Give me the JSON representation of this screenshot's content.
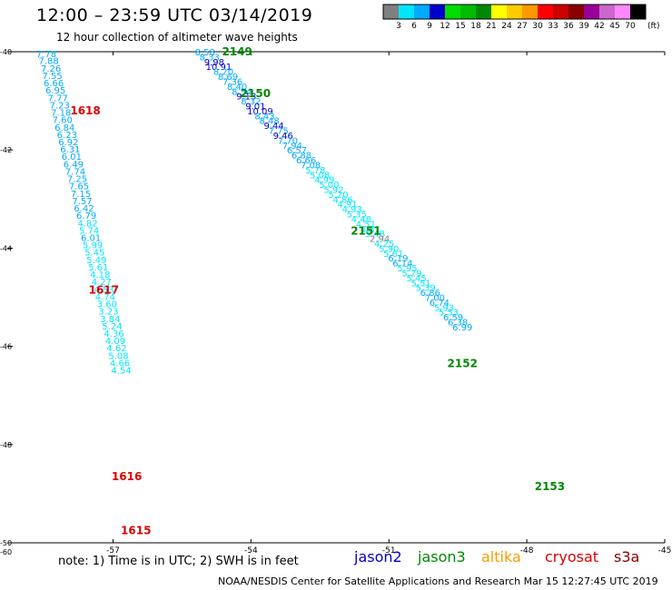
{
  "title": "12:00 – 23:59 UTC 03/14/2019",
  "subtitle": "12 hour collection of altimeter wave heights",
  "note": "note:  1) Time is in UTC; 2) SWH is in feet",
  "credit": "NOAA/NESDIS Center for Satellite Applications and Research     Mar 15 12:27:45 UTC 2019",
  "satellites": [
    {
      "name": "jason2",
      "color": "#0000cc"
    },
    {
      "name": "jason3",
      "color": "#008800"
    },
    {
      "name": "altika",
      "color": "#ff9900"
    },
    {
      "name": "cryosat",
      "color": "#dd0000"
    },
    {
      "name": "s3a",
      "color": "#880000"
    }
  ],
  "color_legend": {
    "unit": "(ft)",
    "labels": [
      "3",
      "6",
      "9",
      "12",
      "15",
      "18",
      "21",
      "24",
      "27",
      "30",
      "33",
      "36",
      "39",
      "42",
      "45",
      "70"
    ],
    "colors": [
      "#808080",
      "#00e5ff",
      "#00aaff",
      "#0000cc",
      "#00dd00",
      "#00bb00",
      "#008800",
      "#ffff00",
      "#ffcc00",
      "#ff9900",
      "#ff0000",
      "#cc0000",
      "#880000",
      "#990099",
      "#cc66cc",
      "#ff88ff",
      "#000000"
    ]
  },
  "chart_data": {
    "type": "scatter",
    "title": "12:00 – 23:59 UTC 03/14/2019",
    "subtitle": "12 hour collection of altimeter wave heights",
    "xlabel": "",
    "ylabel": "",
    "x_ticks": [
      "-57",
      "-54",
      "-51",
      "-48",
      "-45"
    ],
    "y_ticks": [
      "-40",
      "-42",
      "-44",
      "-46",
      "-48",
      "-50"
    ],
    "corner_label": "-60",
    "xlim": [
      -59.3,
      -45
    ],
    "ylim": [
      -50,
      -40
    ],
    "grid": false,
    "track_labels": [
      {
        "text": "2149",
        "lon": -54.3,
        "lat": -40.0,
        "color": "#008800"
      },
      {
        "text": "2150",
        "lon": -53.9,
        "lat": -40.85,
        "color": "#008800"
      },
      {
        "text": "1618",
        "lon": -57.6,
        "lat": -41.2,
        "color": "#dd0000"
      },
      {
        "text": "2151",
        "lon": -51.5,
        "lat": -43.65,
        "color": "#008800"
      },
      {
        "text": "1617",
        "lon": -57.2,
        "lat": -44.85,
        "color": "#dd0000"
      },
      {
        "text": "2152",
        "lon": -49.4,
        "lat": -46.35,
        "color": "#008800"
      },
      {
        "text": "1616",
        "lon": -56.7,
        "lat": -48.65,
        "color": "#dd0000"
      },
      {
        "text": "2153",
        "lon": -47.5,
        "lat": -48.85,
        "color": "#008800"
      },
      {
        "text": "1615",
        "lon": -56.5,
        "lat": -49.75,
        "color": "#dd0000"
      }
    ],
    "series": [
      {
        "name": "1615-1618",
        "points": [
          {
            "lon": -58.45,
            "lat": -40.04,
            "swh": "7.78"
          },
          {
            "lon": -58.4,
            "lat": -40.18,
            "swh": "7.88"
          },
          {
            "lon": -58.35,
            "lat": -40.33,
            "swh": "7.26"
          },
          {
            "lon": -58.32,
            "lat": -40.48,
            "swh": "7.55"
          },
          {
            "lon": -58.29,
            "lat": -40.63,
            "swh": "6.66"
          },
          {
            "lon": -58.25,
            "lat": -40.78,
            "swh": "6.95"
          },
          {
            "lon": -58.2,
            "lat": -40.93,
            "swh": "7.77"
          },
          {
            "lon": -58.16,
            "lat": -41.08,
            "swh": "7.23"
          },
          {
            "lon": -58.13,
            "lat": -41.23,
            "swh": "7.18"
          },
          {
            "lon": -58.1,
            "lat": -41.38,
            "swh": "7.60"
          },
          {
            "lon": -58.05,
            "lat": -41.53,
            "swh": "6.84"
          },
          {
            "lon": -58.0,
            "lat": -41.68,
            "swh": "6.23"
          },
          {
            "lon": -57.97,
            "lat": -41.83,
            "swh": "6.92"
          },
          {
            "lon": -57.93,
            "lat": -41.98,
            "swh": "6.31"
          },
          {
            "lon": -57.9,
            "lat": -42.13,
            "swh": "6.01"
          },
          {
            "lon": -57.86,
            "lat": -42.28,
            "swh": "6.49"
          },
          {
            "lon": -57.82,
            "lat": -42.43,
            "swh": "7.74"
          },
          {
            "lon": -57.78,
            "lat": -42.58,
            "swh": "7.25"
          },
          {
            "lon": -57.74,
            "lat": -42.73,
            "swh": "7.65"
          },
          {
            "lon": -57.7,
            "lat": -42.88,
            "swh": "7.15"
          },
          {
            "lon": -57.67,
            "lat": -43.03,
            "swh": "7.57"
          },
          {
            "lon": -57.63,
            "lat": -43.18,
            "swh": "6.42"
          },
          {
            "lon": -57.58,
            "lat": -43.33,
            "swh": "6.79"
          },
          {
            "lon": -57.55,
            "lat": -43.48,
            "swh": "4.82"
          },
          {
            "lon": -57.52,
            "lat": -43.63,
            "swh": "5.74"
          },
          {
            "lon": -57.48,
            "lat": -43.78,
            "swh": "6.01"
          },
          {
            "lon": -57.44,
            "lat": -43.93,
            "swh": "5.99"
          },
          {
            "lon": -57.4,
            "lat": -44.08,
            "swh": "5.45"
          },
          {
            "lon": -57.36,
            "lat": -44.23,
            "swh": "5.49"
          },
          {
            "lon": -57.32,
            "lat": -44.38,
            "swh": "5.61"
          },
          {
            "lon": -57.28,
            "lat": -44.53,
            "swh": "4.18"
          },
          {
            "lon": -57.25,
            "lat": -44.68,
            "swh": "4.27"
          },
          {
            "lon": -57.2,
            "lat": -44.83,
            "swh": "4.53"
          },
          {
            "lon": -57.17,
            "lat": -44.98,
            "swh": "4.74"
          },
          {
            "lon": -57.13,
            "lat": -45.13,
            "swh": "3.60"
          },
          {
            "lon": -57.1,
            "lat": -45.28,
            "swh": "3.23"
          },
          {
            "lon": -57.06,
            "lat": -45.43,
            "swh": "3.84"
          },
          {
            "lon": -57.02,
            "lat": -45.58,
            "swh": "5.24"
          },
          {
            "lon": -56.98,
            "lat": -45.73,
            "swh": "4.36"
          },
          {
            "lon": -56.95,
            "lat": -45.88,
            "swh": "4.09"
          },
          {
            "lon": -56.92,
            "lat": -46.03,
            "swh": "4.62"
          },
          {
            "lon": -56.88,
            "lat": -46.18,
            "swh": "5.08"
          },
          {
            "lon": -56.85,
            "lat": -46.33,
            "swh": "4.66"
          },
          {
            "lon": -56.82,
            "lat": -46.48,
            "swh": "4.54"
          }
        ]
      },
      {
        "name": "2149-2153",
        "points": [
          {
            "lon": -55.0,
            "lat": -40.0,
            "swh": "8.58"
          },
          {
            "lon": -54.9,
            "lat": -40.1,
            "swh": "8.33"
          },
          {
            "lon": -54.8,
            "lat": -40.2,
            "swh": "9.98"
          },
          {
            "lon": -54.7,
            "lat": -40.3,
            "swh": "10.91"
          },
          {
            "lon": -54.6,
            "lat": -40.4,
            "swh": "8.20"
          },
          {
            "lon": -54.5,
            "lat": -40.5,
            "swh": "8.69"
          },
          {
            "lon": -54.4,
            "lat": -40.6,
            "swh": "7.36"
          },
          {
            "lon": -54.3,
            "lat": -40.7,
            "swh": "8.40"
          },
          {
            "lon": -54.2,
            "lat": -40.8,
            "swh": "8.54"
          },
          {
            "lon": -54.1,
            "lat": -40.9,
            "swh": "9.13"
          },
          {
            "lon": -54.0,
            "lat": -41.0,
            "swh": "8.32"
          },
          {
            "lon": -53.9,
            "lat": -41.1,
            "swh": "9.01"
          },
          {
            "lon": -53.8,
            "lat": -41.2,
            "swh": "10.09"
          },
          {
            "lon": -53.7,
            "lat": -41.3,
            "swh": "8.43"
          },
          {
            "lon": -53.6,
            "lat": -41.4,
            "swh": "8.48"
          },
          {
            "lon": -53.5,
            "lat": -41.5,
            "swh": "9.44"
          },
          {
            "lon": -53.4,
            "lat": -41.6,
            "swh": "7.75"
          },
          {
            "lon": -53.3,
            "lat": -41.7,
            "swh": "9.46"
          },
          {
            "lon": -53.2,
            "lat": -41.8,
            "swh": "7.70"
          },
          {
            "lon": -53.1,
            "lat": -41.9,
            "swh": "7.94"
          },
          {
            "lon": -53.0,
            "lat": -42.0,
            "swh": "6.57"
          },
          {
            "lon": -52.9,
            "lat": -42.1,
            "swh": "6.88"
          },
          {
            "lon": -52.8,
            "lat": -42.2,
            "swh": "6.66"
          },
          {
            "lon": -52.7,
            "lat": -42.3,
            "swh": "7.08"
          },
          {
            "lon": -52.6,
            "lat": -42.4,
            "swh": "5.78"
          },
          {
            "lon": -52.5,
            "lat": -42.5,
            "swh": "5.08"
          },
          {
            "lon": -52.4,
            "lat": -42.6,
            "swh": "4.99"
          },
          {
            "lon": -52.3,
            "lat": -42.7,
            "swh": "5.00"
          },
          {
            "lon": -52.2,
            "lat": -42.8,
            "swh": "5.92"
          },
          {
            "lon": -52.1,
            "lat": -42.9,
            "swh": "5.20"
          },
          {
            "lon": -52.0,
            "lat": -43.0,
            "swh": "4.86"
          },
          {
            "lon": -51.9,
            "lat": -43.1,
            "swh": "4.91"
          },
          {
            "lon": -51.8,
            "lat": -43.2,
            "swh": "4.93"
          },
          {
            "lon": -51.7,
            "lat": -43.3,
            "swh": "5.35"
          },
          {
            "lon": -51.6,
            "lat": -43.4,
            "swh": "4.48"
          },
          {
            "lon": -51.5,
            "lat": -43.5,
            "swh": "4.51"
          },
          {
            "lon": -51.4,
            "lat": -43.6,
            "swh": "4.81"
          },
          {
            "lon": -51.3,
            "lat": -43.7,
            "swh": "5.48"
          },
          {
            "lon": -51.2,
            "lat": -43.8,
            "swh": "2.94"
          },
          {
            "lon": -51.1,
            "lat": -43.9,
            "swh": "4.25"
          },
          {
            "lon": -51.0,
            "lat": -44.0,
            "swh": "5.90"
          },
          {
            "lon": -50.9,
            "lat": -44.1,
            "swh": "5.61"
          },
          {
            "lon": -50.8,
            "lat": -44.2,
            "swh": "6.19"
          },
          {
            "lon": -50.7,
            "lat": -44.3,
            "swh": "6.14"
          },
          {
            "lon": -50.6,
            "lat": -44.4,
            "swh": "5.95"
          },
          {
            "lon": -50.5,
            "lat": -44.5,
            "swh": "5.29"
          },
          {
            "lon": -50.4,
            "lat": -44.6,
            "swh": "5.45"
          },
          {
            "lon": -50.3,
            "lat": -44.7,
            "swh": "5.51"
          },
          {
            "lon": -50.2,
            "lat": -44.8,
            "swh": "5.39"
          },
          {
            "lon": -50.1,
            "lat": -44.9,
            "swh": "6.86"
          },
          {
            "lon": -50.0,
            "lat": -45.0,
            "swh": "7.00"
          },
          {
            "lon": -49.9,
            "lat": -45.1,
            "swh": "6.74"
          },
          {
            "lon": -49.8,
            "lat": -45.2,
            "swh": "5.93"
          },
          {
            "lon": -49.7,
            "lat": -45.3,
            "swh": "5.53"
          },
          {
            "lon": -49.6,
            "lat": -45.4,
            "swh": "6.59"
          },
          {
            "lon": -49.5,
            "lat": -45.5,
            "swh": "6.38"
          },
          {
            "lon": -49.4,
            "lat": -45.6,
            "swh": "6.99"
          }
        ]
      }
    ]
  }
}
